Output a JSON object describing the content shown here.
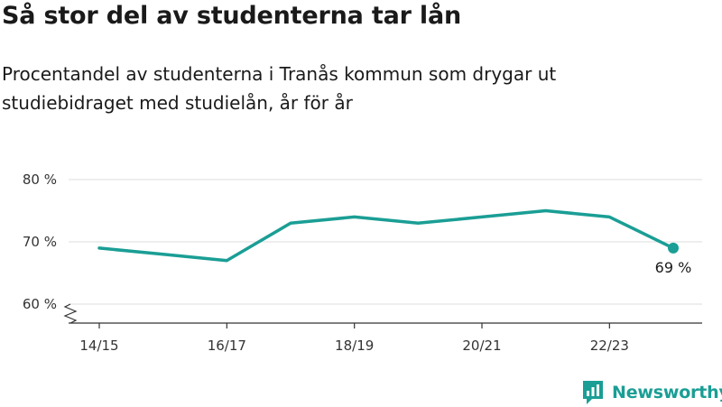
{
  "header": {
    "title": "Så stor del av studenterna tar lån",
    "subtitle": "Procentandel av studenterna i Tranås kommun som drygar ut studiebidraget med studielån, år för år"
  },
  "brand": {
    "name": "Newsworthy",
    "logo_icon": "bar-chart-speech-bubble-icon",
    "color": "#1a9e95"
  },
  "chart_data": {
    "type": "line",
    "title": "",
    "xlabel": "",
    "ylabel": "",
    "x": [
      "14/15",
      "15/16",
      "16/17",
      "17/18",
      "18/19",
      "19/20",
      "20/21",
      "21/22",
      "22/23",
      "23/24"
    ],
    "x_tick_labels": [
      "14/15",
      "16/17",
      "18/19",
      "20/21",
      "22/23"
    ],
    "y_ticks": [
      80,
      70,
      60
    ],
    "y_tick_labels": [
      "80 %",
      "70 %",
      "60 %"
    ],
    "ylim": [
      60,
      80
    ],
    "y_axis_break": true,
    "grid": true,
    "series": [
      {
        "color": "#1a9e95",
        "values": [
          69,
          68,
          67,
          73,
          74,
          73,
          74,
          75,
          74,
          69
        ]
      }
    ],
    "annotation": {
      "label": "69 %",
      "index": 9
    }
  }
}
